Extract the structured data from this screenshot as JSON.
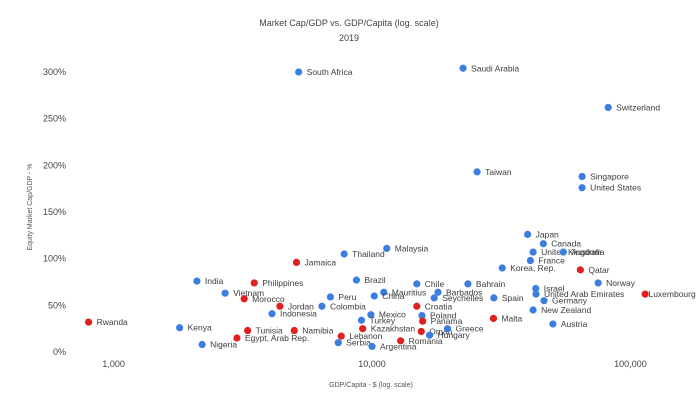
{
  "chart_data": {
    "type": "scatter",
    "title": "Market Cap/GDP vs. GDP/Capita (log. scale)",
    "subtitle": "2019",
    "xlabel": "GDP/Capita - $ (log. scale)",
    "ylabel": "Equity Market Cap/GDP - %",
    "x_scale": "log",
    "xlim": [
      620,
      170000
    ],
    "ylim": [
      0,
      300
    ],
    "x_ticks": [
      {
        "value": 1000,
        "label": "1,000"
      },
      {
        "value": 10000,
        "label": "10,000"
      },
      {
        "value": 100000,
        "label": "100,000"
      }
    ],
    "y_ticks": [
      {
        "value": 0,
        "label": "0%"
      },
      {
        "value": 50,
        "label": "50%"
      },
      {
        "value": 100,
        "label": "100%"
      },
      {
        "value": 150,
        "label": "150%"
      },
      {
        "value": 200,
        "label": "200%"
      },
      {
        "value": 250,
        "label": "250%"
      },
      {
        "value": 300,
        "label": "300%"
      }
    ],
    "colors": {
      "blue": "#3c7ee0",
      "red": "#e01f1f"
    },
    "points": [
      {
        "name": "South Africa",
        "x": 5200,
        "y": 300,
        "color": "blue"
      },
      {
        "name": "Saudi Arabia",
        "x": 22500,
        "y": 304,
        "color": "blue"
      },
      {
        "name": "Switzerland",
        "x": 82000,
        "y": 262,
        "color": "blue"
      },
      {
        "name": "Taiwan",
        "x": 25500,
        "y": 193,
        "color": "blue"
      },
      {
        "name": "Singapore",
        "x": 65000,
        "y": 188,
        "color": "blue"
      },
      {
        "name": "United States",
        "x": 65000,
        "y": 176,
        "color": "blue"
      },
      {
        "name": "Japan",
        "x": 40000,
        "y": 126,
        "color": "blue"
      },
      {
        "name": "Canada",
        "x": 46000,
        "y": 116,
        "color": "blue"
      },
      {
        "name": "United Kingdom",
        "x": 42000,
        "y": 107,
        "color": "blue"
      },
      {
        "name": "Australia",
        "x": 55000,
        "y": 107,
        "color": "blue"
      },
      {
        "name": "Malaysia",
        "x": 11400,
        "y": 111,
        "color": "blue"
      },
      {
        "name": "Thailand",
        "x": 7800,
        "y": 105,
        "color": "blue"
      },
      {
        "name": "France",
        "x": 41000,
        "y": 98,
        "color": "blue"
      },
      {
        "name": "Jamaica",
        "x": 5100,
        "y": 96,
        "color": "red"
      },
      {
        "name": "Korea, Rep.",
        "x": 31900,
        "y": 90,
        "color": "blue"
      },
      {
        "name": "Qatar",
        "x": 64000,
        "y": 88,
        "color": "red"
      },
      {
        "name": "India",
        "x": 2100,
        "y": 76,
        "color": "blue"
      },
      {
        "name": "Philippines",
        "x": 3500,
        "y": 74,
        "color": "red"
      },
      {
        "name": "Brazil",
        "x": 8700,
        "y": 77,
        "color": "blue"
      },
      {
        "name": "Chile",
        "x": 14900,
        "y": 73,
        "color": "blue"
      },
      {
        "name": "Bahrain",
        "x": 23500,
        "y": 73,
        "color": "blue"
      },
      {
        "name": "Norway",
        "x": 75000,
        "y": 74,
        "color": "blue"
      },
      {
        "name": "Mauritius",
        "x": 11100,
        "y": 64,
        "color": "blue"
      },
      {
        "name": "Barbados",
        "x": 18000,
        "y": 64,
        "color": "blue"
      },
      {
        "name": "Israel",
        "x": 43000,
        "y": 68,
        "color": "blue"
      },
      {
        "name": "Vietnam",
        "x": 2700,
        "y": 63,
        "color": "blue"
      },
      {
        "name": "Luxembourg",
        "x": 114000,
        "y": 62,
        "color": "red"
      },
      {
        "name": "Peru",
        "x": 6900,
        "y": 59,
        "color": "blue"
      },
      {
        "name": "China",
        "x": 10200,
        "y": 60,
        "color": "blue"
      },
      {
        "name": "United Arab Emirates",
        "x": 43100,
        "y": 62,
        "color": "blue"
      },
      {
        "name": "Seychelles",
        "x": 17400,
        "y": 58,
        "color": "blue"
      },
      {
        "name": "Spain",
        "x": 29600,
        "y": 58,
        "color": "blue"
      },
      {
        "name": "Germany",
        "x": 46300,
        "y": 55,
        "color": "blue"
      },
      {
        "name": "Morocco",
        "x": 3200,
        "y": 57,
        "color": "red"
      },
      {
        "name": "Jordan",
        "x": 4400,
        "y": 49,
        "color": "red"
      },
      {
        "name": "Colombia",
        "x": 6400,
        "y": 49,
        "color": "blue"
      },
      {
        "name": "Croatia",
        "x": 14900,
        "y": 49,
        "color": "red"
      },
      {
        "name": "New Zealand",
        "x": 42000,
        "y": 45,
        "color": "blue"
      },
      {
        "name": "Indonesia",
        "x": 4100,
        "y": 41,
        "color": "blue"
      },
      {
        "name": "Mexico",
        "x": 9900,
        "y": 40,
        "color": "blue"
      },
      {
        "name": "Poland",
        "x": 15600,
        "y": 39,
        "color": "blue"
      },
      {
        "name": "Turkey",
        "x": 9100,
        "y": 34,
        "color": "blue"
      },
      {
        "name": "Malta",
        "x": 29500,
        "y": 36,
        "color": "red"
      },
      {
        "name": "Panama",
        "x": 15700,
        "y": 33,
        "color": "red"
      },
      {
        "name": "Austria",
        "x": 50100,
        "y": 30,
        "color": "blue"
      },
      {
        "name": "Rwanda",
        "x": 800,
        "y": 32,
        "color": "red"
      },
      {
        "name": "Kenya",
        "x": 1800,
        "y": 26,
        "color": "blue"
      },
      {
        "name": "Tunisia",
        "x": 3300,
        "y": 23,
        "color": "red"
      },
      {
        "name": "Namibia",
        "x": 5000,
        "y": 23,
        "color": "red"
      },
      {
        "name": "Kazakhstan",
        "x": 9200,
        "y": 25,
        "color": "red"
      },
      {
        "name": "Oman",
        "x": 15500,
        "y": 22,
        "color": "red"
      },
      {
        "name": "Greece",
        "x": 19600,
        "y": 25,
        "color": "blue"
      },
      {
        "name": "Egypt, Arab Rep.",
        "x": 3000,
        "y": 15,
        "color": "red"
      },
      {
        "name": "Lebanon",
        "x": 7600,
        "y": 17,
        "color": "red"
      },
      {
        "name": "Hungary",
        "x": 16700,
        "y": 18,
        "color": "blue"
      },
      {
        "name": "Serbia",
        "x": 7400,
        "y": 10,
        "color": "blue"
      },
      {
        "name": "Romania",
        "x": 12900,
        "y": 12,
        "color": "red"
      },
      {
        "name": "Nigeria",
        "x": 2200,
        "y": 8,
        "color": "blue"
      },
      {
        "name": "Argentina",
        "x": 10000,
        "y": 6,
        "color": "blue"
      }
    ]
  }
}
